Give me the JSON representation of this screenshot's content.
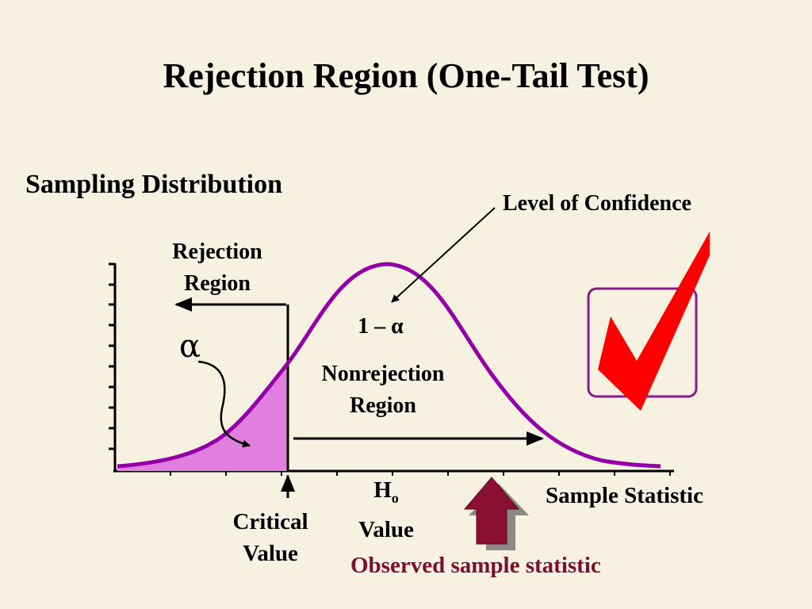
{
  "title": "Rejection Region (One-Tail Test)",
  "subtitle": "Sampling Distribution",
  "labels": {
    "level_of_confidence": "Level of Confidence",
    "rejection_region": [
      "Rejection",
      "Region"
    ],
    "alpha": "α",
    "one_minus_alpha": "1 – α",
    "nonrejection_region": [
      "Nonrejection",
      "Region"
    ],
    "critical_value": [
      "Critical",
      "Value"
    ],
    "h0_letter": "H",
    "h0_subscript": "o",
    "h0_value": "Value",
    "sample_statistic": "Sample Statistic",
    "observed_sample_statistic": "Observed sample statistic"
  },
  "colors": {
    "background": "#f6f1e0",
    "curve": "#9400a8",
    "rejection_fill": "#e27ee0",
    "observed_arrow": "#8a0f33",
    "observed_text": "#7a1030",
    "checkmark": "#ff0000",
    "check_box_border": "#8a1a8a"
  },
  "icons": [
    "checkmark-icon",
    "observed-statistic-up-arrow-icon"
  ]
}
